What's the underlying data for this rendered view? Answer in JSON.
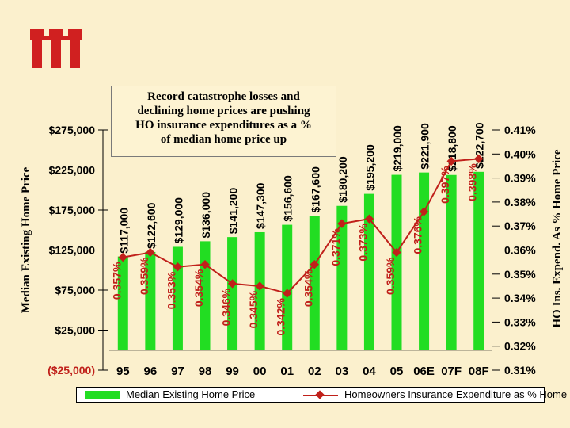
{
  "logo_text": "iii",
  "callout_lines": [
    "Record catastrophe losses and",
    "declining home prices are pushing",
    "HO insurance expenditures as a %",
    "of median home price up"
  ],
  "colors": {
    "background": "#fbf0cd",
    "bar": "#22dd22",
    "line": "#c0201a",
    "logo": "#d02020"
  },
  "legend": {
    "bar_label": "Median Existing Home Price",
    "line_label": "Homeowners Insurance Expenditure as % Home Price"
  },
  "chart_data": {
    "type": "bar",
    "categories": [
      "95",
      "96",
      "97",
      "98",
      "99",
      "00",
      "01",
      "02",
      "03",
      "04",
      "05",
      "06E",
      "07F",
      "08F"
    ],
    "series": [
      {
        "name": "Median Existing Home Price",
        "type": "bar",
        "values": [
          117000,
          122600,
          129000,
          136000,
          141200,
          147300,
          156600,
          167600,
          180200,
          195200,
          219000,
          221900,
          218800,
          222700
        ],
        "labels": [
          "$117,000",
          "$122,600",
          "$129,000",
          "$136,000",
          "$141,200",
          "$147,300",
          "$156,600",
          "$167,600",
          "$180,200",
          "$195,200",
          "$219,000",
          "$221,900",
          "$218,800",
          "$222,700"
        ]
      },
      {
        "name": "Homeowners Insurance Expenditure as % Home Price",
        "type": "line",
        "values": [
          0.357,
          0.359,
          0.353,
          0.354,
          0.346,
          0.345,
          0.342,
          0.354,
          0.371,
          0.373,
          0.359,
          0.376,
          0.397,
          0.398
        ],
        "labels": [
          "0.357%",
          "0.359%",
          "0.353%",
          "0.354%",
          "0.346%",
          "0.345%",
          "0.342%",
          "0.354%",
          "0.371%",
          "0.373%",
          "0.359%",
          "0.376%",
          "0.397%",
          "0.398%"
        ]
      }
    ],
    "left_axis": {
      "label": "Median Existing Home Price",
      "ylim": [
        -25000,
        275000
      ],
      "ticks": [
        -25000,
        25000,
        75000,
        125000,
        175000,
        225000,
        275000
      ],
      "tick_labels": [
        "($25,000)",
        "$25,000",
        "$75,000",
        "$125,000",
        "$175,000",
        "$225,000",
        "$275,000"
      ]
    },
    "right_axis": {
      "label": "HO Ins. Expend. As % Home Price",
      "ylim": [
        0.31,
        0.41
      ],
      "ticks": [
        0.31,
        0.32,
        0.33,
        0.34,
        0.35,
        0.36,
        0.37,
        0.38,
        0.39,
        0.4,
        0.41
      ],
      "tick_labels": [
        "0.31%",
        "0.32%",
        "0.33%",
        "0.34%",
        "0.35%",
        "0.36%",
        "0.37%",
        "0.38%",
        "0.39%",
        "0.40%",
        "0.41%"
      ]
    },
    "grid": false,
    "legend_position": "bottom"
  }
}
